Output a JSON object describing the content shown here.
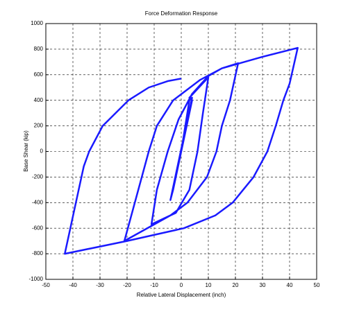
{
  "chart_data": {
    "type": "line",
    "title": "Force Deformation Response",
    "x_label": "Relative Lateral Displacement (inch)",
    "y_label": "Base Shear (kip)",
    "color": "#1a1aff",
    "grid": true,
    "xlim": [
      -50,
      50
    ],
    "ylim": [
      -1000,
      1000
    ],
    "xticks": [
      -50,
      -40,
      -30,
      -20,
      -10,
      0,
      10,
      20,
      30,
      40,
      50
    ],
    "yticks": [
      -1000,
      -800,
      -600,
      -400,
      -200,
      0,
      200,
      400,
      600,
      800,
      1000
    ],
    "x": [
      0,
      3,
      4,
      -4,
      -3,
      4,
      3,
      10,
      8,
      6,
      3,
      -2,
      -11,
      -9,
      -5,
      -1,
      4,
      10,
      15,
      21,
      18,
      15,
      13,
      9.5,
      2.3,
      -4,
      -21,
      -12,
      -9,
      -3,
      7,
      15,
      30,
      43,
      40,
      37.7,
      34.9,
      31.8,
      26.7,
      19,
      12.6,
      1,
      -20,
      -43,
      -36,
      -34,
      -29,
      -19.5,
      -12,
      -5,
      0
    ],
    "values": [
      0,
      400,
      420,
      -380,
      -300,
      400,
      420,
      580,
      300,
      0,
      -300,
      -480,
      -570,
      -300,
      0,
      250,
      450,
      590,
      650,
      690,
      400,
      200,
      0,
      -200,
      -400,
      -500,
      -700,
      0,
      200,
      400,
      560,
      650,
      740,
      810,
      530,
      400,
      200,
      0,
      -200,
      -400,
      -500,
      -600,
      -700,
      -800,
      -117,
      0,
      200,
      400,
      500,
      550,
      570
    ]
  }
}
